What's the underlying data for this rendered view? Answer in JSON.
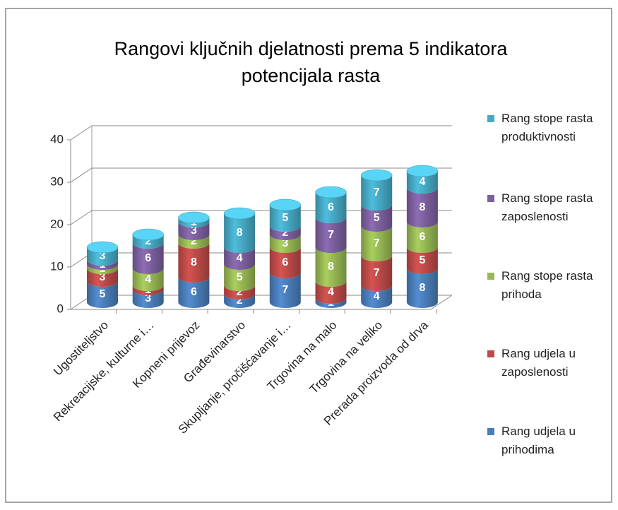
{
  "chart_data": {
    "type": "bar3d-cylinder-stacked",
    "title": "Rangovi ključnih djelatnosti prema 5 indikatora potencijala rasta",
    "categories": [
      "Ugostiteljstvo",
      "Rekreacijske, kulturne i…",
      "Kopneni prijevoz",
      "Građevinarstvo",
      "Skupljanje, pročišćavanje i…",
      "Trgovina na malo",
      "Trgovina na veliko",
      "Prerada proizvoda od drva"
    ],
    "series": [
      {
        "name": "Rang udjela u prihodima",
        "color": "#4a7ebb",
        "values": [
          5,
          3,
          6,
          2,
          7,
          1,
          4,
          8
        ]
      },
      {
        "name": "Rang udjela u zaposlenosti",
        "color": "#be4b48",
        "values": [
          3,
          1,
          8,
          2,
          6,
          4,
          7,
          5
        ]
      },
      {
        "name": "Rang stope rasta prihoda",
        "color": "#98b954",
        "values": [
          1,
          4,
          2,
          5,
          3,
          8,
          7,
          6
        ]
      },
      {
        "name": "Rang stope rasta zaposlenosti",
        "color": "#7d60a0",
        "values": [
          1,
          6,
          3,
          4,
          2,
          7,
          5,
          8
        ]
      },
      {
        "name": "Rang stope rasta produktivnosti",
        "color": "#46aac5",
        "values": [
          3,
          2,
          1,
          8,
          5,
          6,
          7,
          4
        ]
      }
    ],
    "ylim": [
      0,
      40
    ],
    "yticks": [
      0,
      10,
      20,
      30,
      40
    ],
    "grid": true,
    "legend": "right"
  }
}
